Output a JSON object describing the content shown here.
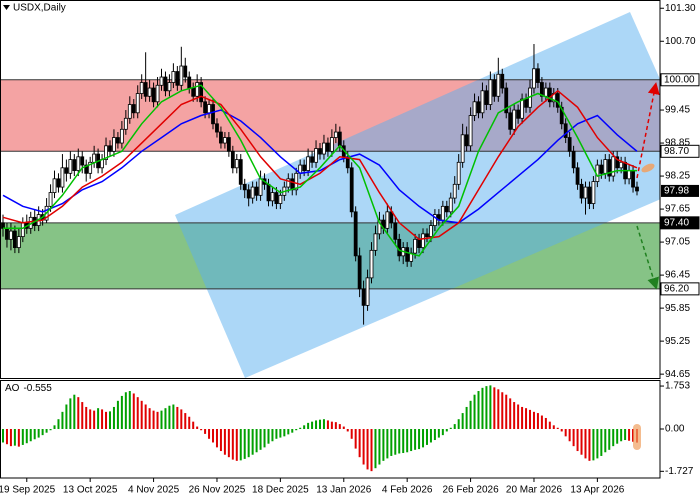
{
  "chart_data": [
    {
      "type": "candlestick",
      "title": "USDX,Daily",
      "categories": [
        null,
        null,
        null,
        null,
        null,
        null,
        "19 Sep 2025",
        null,
        null,
        null,
        null,
        null,
        null,
        null,
        null,
        null,
        null,
        null,
        null,
        null,
        null,
        null,
        "13 Oct 2025",
        null,
        null,
        null,
        null,
        null,
        null,
        null,
        null,
        null,
        null,
        null,
        null,
        null,
        null,
        null,
        "4 Nov 2025",
        null,
        null,
        null,
        null,
        null,
        null,
        null,
        null,
        null,
        null,
        null,
        null,
        null,
        null,
        null,
        "26 Nov 2025",
        null,
        null,
        null,
        null,
        null,
        null,
        null,
        null,
        null,
        null,
        null,
        null,
        null,
        null,
        null,
        "18 Dec 2025",
        null,
        null,
        null,
        null,
        null,
        null,
        null,
        null,
        null,
        null,
        null,
        null,
        null,
        null,
        null,
        "13 Jan 2026",
        null,
        null,
        null,
        null,
        null,
        null,
        null,
        null,
        null,
        null,
        null,
        null,
        null,
        null,
        null,
        "4 Feb 2026",
        null,
        null,
        null,
        null,
        null,
        null,
        null,
        null,
        null,
        null,
        null,
        null,
        null,
        null,
        null,
        "26 Feb 2026",
        null,
        null,
        null,
        null,
        null,
        null,
        null,
        null,
        null,
        null,
        null,
        null,
        null,
        null,
        null,
        "20 Mar 2026",
        null,
        null,
        null,
        null,
        null,
        null,
        null,
        null,
        null,
        null,
        null,
        null,
        null,
        null,
        null,
        "13 Apr 2026",
        null,
        null,
        null,
        null,
        null,
        null,
        null,
        null,
        null,
        null
      ],
      "open": [
        97.4,
        97.3,
        97.1,
        97.25,
        96.95,
        97.15,
        97.4,
        97.3,
        97.5,
        97.35,
        97.55,
        97.45,
        97.7,
        97.95,
        98.2,
        98.05,
        98.4,
        98.3,
        98.55,
        98.35,
        98.6,
        98.45,
        98.3,
        98.5,
        98.65,
        98.4,
        98.55,
        98.8,
        98.7,
        98.95,
        98.85,
        99.1,
        99.3,
        99.55,
        99.4,
        99.75,
        99.95,
        99.7,
        99.85,
        99.6,
        99.9,
        100.05,
        99.8,
        99.95,
        100.15,
        99.9,
        100.25,
        100.05,
        99.85,
        99.7,
        99.95,
        99.6,
        99.4,
        99.55,
        99.2,
        99.05,
        98.85,
        98.95,
        98.7,
        98.4,
        98.55,
        98.1,
        98.0,
        97.85,
        98.05,
        97.9,
        98.2,
        98.1,
        97.8,
        97.95,
        97.75,
        97.9,
        98.05,
        98.2,
        98.0,
        98.3,
        98.45,
        98.35,
        98.6,
        98.5,
        98.75,
        98.65,
        98.85,
        98.7,
        98.95,
        99.05,
        98.8,
        98.6,
        98.4,
        97.6,
        96.8,
        96.2,
        95.9,
        96.4,
        96.9,
        97.2,
        97.45,
        97.3,
        97.6,
        97.4,
        97.1,
        96.8,
        96.95,
        96.7,
        96.85,
        97.1,
        96.95,
        97.2,
        97.15,
        97.35,
        97.55,
        97.45,
        97.7,
        97.6,
        97.85,
        98.1,
        98.5,
        99.0,
        98.8,
        99.35,
        99.6,
        99.4,
        99.8,
        99.55,
        100.0,
        99.7,
        100.1,
        99.85,
        99.4,
        99.1,
        99.45,
        99.3,
        99.65,
        99.5,
        99.85,
        100.2,
        99.95,
        99.7,
        99.85,
        99.6,
        99.75,
        99.5,
        99.2,
        98.95,
        98.7,
        98.4,
        98.1,
        97.85,
        98.05,
        97.75,
        98.15,
        98.45,
        98.3,
        98.55,
        98.25,
        98.6,
        98.4,
        98.5,
        98.2,
        98.35,
        98.05
      ],
      "high": [
        97.55,
        97.4,
        97.4,
        97.35,
        97.3,
        97.5,
        97.55,
        97.6,
        97.65,
        97.7,
        97.65,
        97.85,
        98.1,
        98.35,
        98.3,
        98.65,
        98.55,
        98.7,
        98.65,
        98.75,
        98.7,
        98.55,
        98.6,
        98.8,
        98.75,
        98.65,
        98.95,
        98.9,
        99.1,
        99.05,
        99.25,
        99.45,
        99.7,
        99.65,
        99.9,
        100.1,
        100.5,
        100.0,
        99.95,
        100.05,
        100.2,
        100.15,
        100.1,
        100.3,
        100.25,
        100.6,
        100.4,
        100.15,
        99.95,
        100.1,
        100.05,
        99.7,
        99.65,
        99.65,
        99.3,
        99.15,
        99.05,
        99.05,
        98.8,
        98.65,
        98.65,
        98.2,
        98.1,
        98.15,
        98.15,
        98.35,
        98.3,
        98.2,
        98.05,
        98.05,
        98.0,
        98.15,
        98.3,
        98.3,
        98.4,
        98.55,
        98.55,
        98.75,
        98.7,
        98.9,
        98.85,
        99.0,
        98.95,
        99.1,
        99.2,
        99.15,
        98.9,
        98.7,
        98.5,
        97.7,
        96.95,
        96.35,
        96.55,
        97.05,
        97.35,
        97.6,
        97.55,
        97.75,
        97.7,
        97.5,
        97.2,
        97.05,
        97.05,
        96.95,
        97.2,
        97.2,
        97.3,
        97.3,
        97.45,
        97.65,
        97.65,
        97.8,
        97.8,
        97.95,
        98.25,
        98.65,
        99.2,
        99.15,
        99.5,
        99.75,
        99.7,
        99.95,
        99.9,
        100.15,
        100.1,
        100.4,
        100.2,
        99.95,
        99.5,
        99.55,
        99.55,
        99.75,
        99.75,
        100.0,
        100.65,
        100.3,
        100.05,
        99.95,
        99.95,
        99.85,
        99.85,
        99.6,
        99.3,
        99.05,
        98.8,
        98.5,
        98.2,
        98.15,
        98.15,
        98.25,
        98.55,
        98.55,
        98.65,
        98.65,
        98.7,
        98.7,
        98.6,
        98.6,
        98.45,
        98.45,
        98.15
      ],
      "low": [
        97.15,
        96.95,
        96.9,
        96.85,
        96.85,
        97.05,
        97.2,
        97.2,
        97.25,
        97.25,
        97.35,
        97.4,
        97.6,
        97.85,
        97.95,
        97.95,
        98.15,
        98.2,
        98.25,
        98.25,
        98.3,
        98.15,
        98.2,
        98.4,
        98.3,
        98.3,
        98.45,
        98.6,
        98.6,
        98.75,
        98.75,
        99.0,
        99.2,
        99.3,
        99.3,
        99.65,
        99.6,
        99.6,
        99.5,
        99.5,
        99.8,
        99.7,
        99.7,
        99.85,
        99.8,
        99.8,
        99.95,
        99.75,
        99.6,
        99.6,
        99.5,
        99.3,
        99.3,
        99.1,
        98.95,
        98.75,
        98.75,
        98.6,
        98.3,
        98.3,
        98.0,
        97.85,
        97.7,
        97.75,
        97.8,
        97.8,
        98.0,
        97.7,
        97.7,
        97.65,
        97.65,
        97.8,
        97.95,
        97.9,
        97.9,
        98.2,
        98.25,
        98.25,
        98.4,
        98.4,
        98.55,
        98.55,
        98.6,
        98.6,
        98.85,
        98.7,
        98.5,
        98.3,
        97.5,
        96.7,
        96.05,
        95.55,
        95.8,
        96.3,
        96.8,
        97.1,
        97.2,
        97.2,
        97.3,
        97.0,
        96.7,
        96.65,
        96.6,
        96.6,
        96.75,
        96.85,
        96.85,
        97.05,
        97.05,
        97.25,
        97.35,
        97.35,
        97.5,
        97.5,
        97.75,
        98.0,
        98.4,
        98.7,
        98.7,
        99.25,
        99.3,
        99.3,
        99.45,
        99.45,
        99.6,
        99.6,
        99.75,
        99.3,
        99.0,
        99.0,
        99.2,
        99.2,
        99.4,
        99.4,
        99.75,
        99.85,
        99.6,
        99.6,
        99.5,
        99.5,
        99.4,
        99.1,
        98.85,
        98.6,
        98.3,
        98.0,
        97.75,
        97.55,
        97.65,
        97.65,
        98.05,
        98.2,
        98.2,
        98.15,
        98.15,
        98.3,
        98.3,
        98.1,
        98.1,
        97.95,
        97.9
      ],
      "close": [
        97.3,
        97.1,
        97.25,
        96.95,
        97.15,
        97.4,
        97.3,
        97.5,
        97.35,
        97.55,
        97.45,
        97.7,
        97.95,
        98.2,
        98.05,
        98.4,
        98.3,
        98.55,
        98.35,
        98.6,
        98.45,
        98.3,
        98.5,
        98.65,
        98.4,
        98.55,
        98.8,
        98.7,
        98.95,
        98.85,
        99.1,
        99.3,
        99.55,
        99.4,
        99.75,
        99.95,
        99.7,
        99.85,
        99.6,
        99.9,
        100.05,
        99.8,
        99.95,
        100.15,
        99.9,
        100.25,
        100.05,
        99.85,
        99.7,
        99.95,
        99.6,
        99.4,
        99.55,
        99.2,
        99.05,
        98.85,
        98.95,
        98.7,
        98.4,
        98.55,
        98.1,
        98.0,
        97.85,
        98.05,
        97.9,
        98.2,
        98.1,
        97.8,
        97.95,
        97.75,
        97.9,
        98.05,
        98.2,
        98.0,
        98.3,
        98.45,
        98.35,
        98.6,
        98.5,
        98.75,
        98.65,
        98.85,
        98.7,
        98.95,
        99.05,
        98.8,
        98.6,
        98.4,
        97.6,
        96.8,
        96.2,
        95.9,
        96.4,
        96.9,
        97.2,
        97.45,
        97.3,
        97.6,
        97.4,
        97.1,
        96.8,
        96.95,
        96.7,
        96.85,
        97.1,
        96.95,
        97.2,
        97.15,
        97.35,
        97.55,
        97.45,
        97.7,
        97.6,
        97.85,
        98.1,
        98.5,
        99.0,
        98.8,
        99.35,
        99.6,
        99.4,
        99.8,
        99.55,
        100.0,
        99.7,
        100.1,
        99.85,
        99.4,
        99.1,
        99.45,
        99.3,
        99.65,
        99.5,
        99.85,
        100.2,
        99.95,
        99.7,
        99.85,
        99.6,
        99.75,
        99.5,
        99.2,
        98.95,
        98.7,
        98.4,
        98.1,
        97.85,
        98.05,
        97.75,
        98.15,
        98.45,
        98.3,
        98.55,
        98.25,
        98.6,
        98.4,
        98.5,
        98.2,
        98.35,
        98.05,
        97.98
      ],
      "up_color": "#ffffff",
      "down_color": "#000000",
      "series": [
        {
          "color": "#0000ff",
          "x": [
            0,
            5,
            10,
            15,
            20,
            25,
            30,
            35,
            40,
            45,
            50,
            55,
            60,
            65,
            70,
            75,
            80,
            85,
            90,
            95,
            100,
            105,
            110,
            115,
            120,
            125,
            130,
            135,
            140,
            145,
            150,
            155,
            160
          ],
          "values": [
            97.9,
            97.7,
            97.6,
            97.75,
            98.0,
            98.15,
            98.4,
            98.7,
            98.95,
            99.2,
            99.35,
            99.45,
            99.25,
            98.95,
            98.6,
            98.3,
            98.35,
            98.55,
            98.65,
            98.45,
            98.0,
            97.7,
            97.45,
            97.4,
            97.65,
            97.95,
            98.25,
            98.55,
            98.9,
            99.2,
            99.35,
            99.0,
            98.7
          ]
        },
        {
          "color": "#e00000",
          "x": [
            0,
            5,
            10,
            15,
            20,
            25,
            30,
            35,
            40,
            45,
            50,
            55,
            60,
            65,
            70,
            75,
            80,
            85,
            90,
            95,
            100,
            105,
            110,
            115,
            120,
            125,
            130,
            135,
            140,
            145,
            150,
            155,
            160
          ],
          "values": [
            97.5,
            97.4,
            97.45,
            97.7,
            98.05,
            98.25,
            98.5,
            98.85,
            99.2,
            99.55,
            99.7,
            99.55,
            99.1,
            98.6,
            98.2,
            98.1,
            98.3,
            98.6,
            98.55,
            97.95,
            97.4,
            97.1,
            97.15,
            97.4,
            98.0,
            98.6,
            99.15,
            99.5,
            99.8,
            99.5,
            98.95,
            98.55,
            98.4
          ]
        },
        {
          "color": "#00c000",
          "x": [
            0,
            5,
            10,
            15,
            20,
            25,
            30,
            35,
            40,
            45,
            50,
            55,
            60,
            65,
            70,
            75,
            80,
            85,
            90,
            95,
            100,
            105,
            110,
            115,
            120,
            125,
            130,
            135,
            140,
            145,
            150,
            155,
            160
          ],
          "values": [
            97.3,
            97.3,
            97.5,
            97.9,
            98.4,
            98.55,
            98.7,
            99.2,
            99.6,
            99.8,
            99.9,
            99.5,
            98.9,
            98.2,
            97.95,
            98.05,
            98.4,
            98.8,
            98.4,
            97.4,
            96.9,
            96.8,
            97.3,
            97.7,
            98.7,
            99.4,
            99.6,
            99.75,
            99.6,
            98.95,
            98.25,
            98.35,
            98.35
          ]
        }
      ],
      "zones": [
        {
          "range": [
            98.7,
            100.0
          ],
          "color": "#f4a3a3"
        },
        {
          "range": [
            96.2,
            97.4
          ],
          "color": "#86c386"
        }
      ],
      "levels": [
        {
          "value": 100.0,
          "label": "100.00",
          "background": "#ffffff"
        },
        {
          "value": 98.7,
          "label": "98.70",
          "background": "#ffffff"
        },
        {
          "value": 97.4,
          "label": "97.40",
          "background": "#000000"
        },
        {
          "value": 96.2,
          "label": "96.20",
          "background": "#ffffff"
        }
      ],
      "ylim": [
        94.58,
        101.45
      ],
      "yticks": [
        {
          "value": 101.3,
          "label": "101.30"
        },
        {
          "value": 100.7,
          "label": "100.70"
        },
        99.45,
        98.85,
        98.25,
        97.65,
        97.05,
        96.45,
        95.85,
        95.25,
        94.65
      ]
    },
    {
      "type": "bar",
      "title": "AO",
      "values": [
        -0.55,
        -0.62,
        -0.7,
        -0.68,
        -0.72,
        -0.65,
        -0.58,
        -0.5,
        -0.42,
        -0.35,
        -0.25,
        -0.15,
        -0.05,
        0.15,
        0.4,
        0.7,
        1.0,
        1.25,
        1.4,
        1.3,
        1.1,
        0.9,
        0.8,
        0.75,
        0.85,
        0.8,
        0.7,
        0.72,
        0.9,
        1.15,
        1.35,
        1.5,
        1.55,
        1.45,
        1.3,
        1.15,
        1.0,
        0.85,
        0.75,
        0.7,
        0.75,
        0.85,
        0.95,
        1.0,
        0.9,
        0.8,
        0.65,
        0.5,
        0.3,
        0.1,
        -0.05,
        -0.2,
        -0.4,
        -0.55,
        -0.75,
        -0.9,
        -1.05,
        -1.15,
        -1.25,
        -1.3,
        -1.28,
        -1.22,
        -1.15,
        -1.05,
        -0.95,
        -0.85,
        -0.75,
        -0.6,
        -0.5,
        -0.4,
        -0.35,
        -0.3,
        -0.22,
        -0.15,
        -0.05,
        0.05,
        0.15,
        0.25,
        0.3,
        0.35,
        0.38,
        0.4,
        0.35,
        0.3,
        0.28,
        0.2,
        0.1,
        -0.1,
        -0.4,
        -0.8,
        -1.15,
        -1.45,
        -1.65,
        -1.72,
        -1.6,
        -1.45,
        -1.3,
        -1.2,
        -1.1,
        -1.05,
        -1.0,
        -0.98,
        -0.95,
        -0.9,
        -0.85,
        -0.82,
        -0.75,
        -0.65,
        -0.55,
        -0.45,
        -0.35,
        -0.25,
        -0.1,
        0.05,
        0.2,
        0.4,
        0.65,
        0.9,
        1.15,
        1.4,
        1.55,
        1.68,
        1.75,
        1.78,
        1.7,
        1.62,
        1.5,
        1.4,
        1.25,
        1.1,
        1.0,
        0.9,
        0.85,
        0.78,
        0.7,
        0.65,
        0.55,
        0.45,
        0.3,
        0.15,
        0.05,
        -0.1,
        -0.3,
        -0.5,
        -0.7,
        -0.9,
        -1.05,
        -1.2,
        -1.3,
        -1.28,
        -1.2,
        -1.1,
        -0.95,
        -0.85,
        -0.7,
        -0.6,
        -0.5,
        -0.45,
        -0.48,
        -0.52,
        -0.555
      ],
      "up_color": "#00a000",
      "down_color": "#e00000",
      "ylim": [
        -2.0,
        2.0
      ],
      "yticks": [
        1.753,
        {
          "value": 0,
          "label": "0.00"
        },
        -1.727
      ]
    }
  ]
}
